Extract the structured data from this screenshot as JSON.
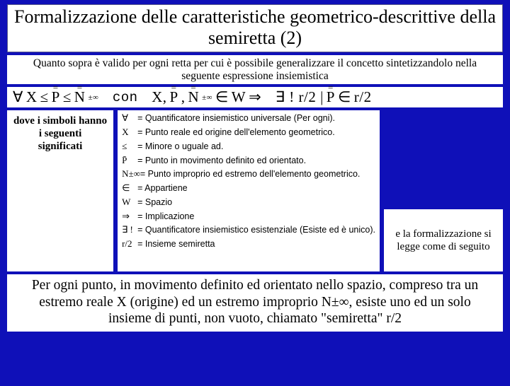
{
  "title": "Formalizzazione delle caratteristiche geometrico-descrittive della semiretta (2)",
  "subtitle": "Quanto sopra è valido per ogni retta per cui è possibile generalizzare il concetto sintetizzandolo nella  seguente espressione insiemistica",
  "formula": {
    "forall": "∀",
    "x": "X",
    "le1": "≤",
    "p": "P",
    "le2": "≤",
    "n": "N",
    "pminf": "±∞",
    "con": "con",
    "x2": "X,",
    "p2": "P",
    "comma": ",",
    "n2": "N",
    "pminf2": "±∞",
    "in": "∈",
    "w": "W",
    "imp": "⇒",
    "exists": "∃ ! r/2 |",
    "p3": "P",
    "in2": "∈",
    "r2": "r/2"
  },
  "dove": {
    "l1": "dove i simboli hanno",
    "l2": "i seguenti",
    "l3": "significati"
  },
  "defs": {
    "d1": {
      "s": "∀",
      "t": "= Quantificatore insiemistico universale (Per ogni)."
    },
    "d2": {
      "s": "X",
      "t": "= Punto reale ed origine dell'elemento geometrico."
    },
    "d3": {
      "s": "≤",
      "t": "= Minore o uguale ad."
    },
    "d4": {
      "s": "P̄",
      "t": "= Punto in movimento definito ed orientato."
    },
    "d5": {
      "s": "N±∞",
      "t": "= Punto improprio ed estremo dell'elemento geometrico."
    },
    "d6": {
      "s": "∈",
      "t": "= Appartiene"
    },
    "d7": {
      "s": "W",
      "t": "= Spazio"
    },
    "d8": {
      "s": "⇒",
      "t": "= Implicazione"
    },
    "d9": {
      "s": "∃ !",
      "t": "= Quantificatore insiemistico esistenziale (Esiste ed è unico)."
    },
    "d10": {
      "s": "r/2",
      "t": "= Insieme semiretta"
    }
  },
  "read": "e la formalizzazione si legge come di seguito",
  "bottom": "Per ogni punto, in movimento definito ed orientato nello spazio, compreso tra un estremo reale X (origine) ed un estremo improprio N±∞, esiste  uno ed un solo  insieme di punti,  non vuoto,  chiamato \"semiretta\"  r/2",
  "colors": {
    "bg": "#0f10b8",
    "panel": "#ffffff",
    "border": "#5a5a8a"
  }
}
